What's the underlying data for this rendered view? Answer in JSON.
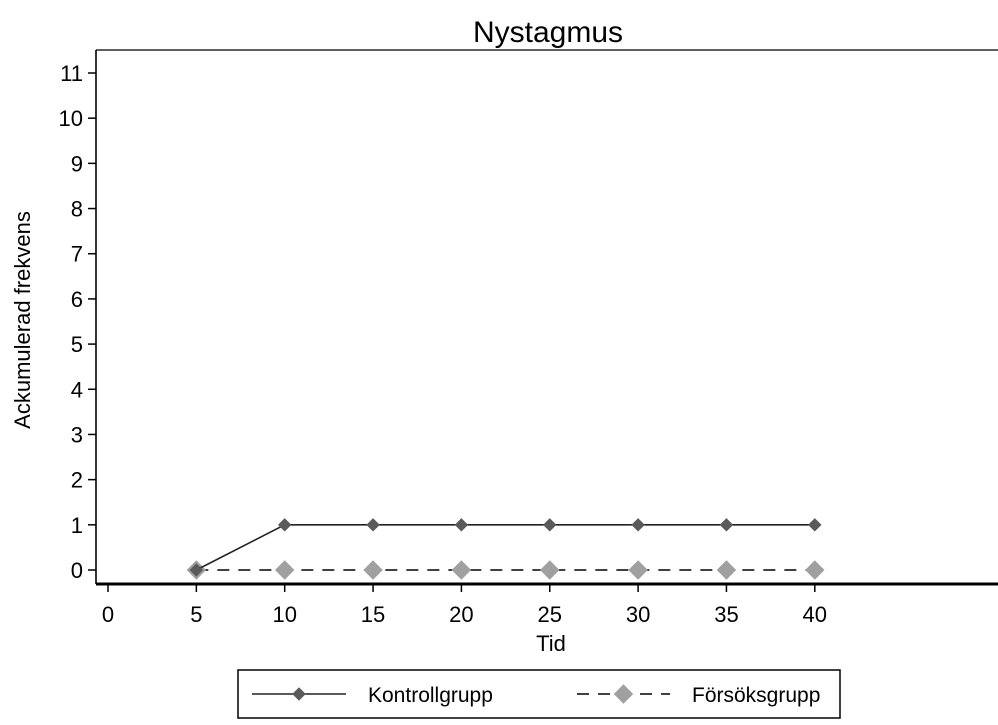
{
  "chart_data": {
    "type": "line",
    "title": "Nystagmus",
    "xlabel": "Tid",
    "ylabel": "Ackumulerad frekvens",
    "x": [
      5,
      10,
      15,
      20,
      25,
      30,
      35,
      40
    ],
    "xlim": [
      0,
      50
    ],
    "ylim": [
      0,
      11
    ],
    "xticks": [
      "0",
      "5",
      "10",
      "15",
      "20",
      "25",
      "30",
      "35",
      "40"
    ],
    "yticks": [
      "0",
      "1",
      "2",
      "3",
      "4",
      "5",
      "6",
      "7",
      "8",
      "9",
      "10",
      "11"
    ],
    "grid": false,
    "legend_position": "bottom",
    "series": [
      {
        "name": "Kontrollgrupp",
        "values": [
          0,
          1,
          1,
          1,
          1,
          1,
          1,
          1
        ],
        "color": "#5a5a5a",
        "line_style": "solid",
        "marker": "diamond"
      },
      {
        "name": "Försöksgrupp",
        "values": [
          0,
          0,
          0,
          0,
          0,
          0,
          0,
          0
        ],
        "color": "#a0a0a0",
        "line_style": "dashed",
        "marker": "diamond"
      }
    ]
  }
}
